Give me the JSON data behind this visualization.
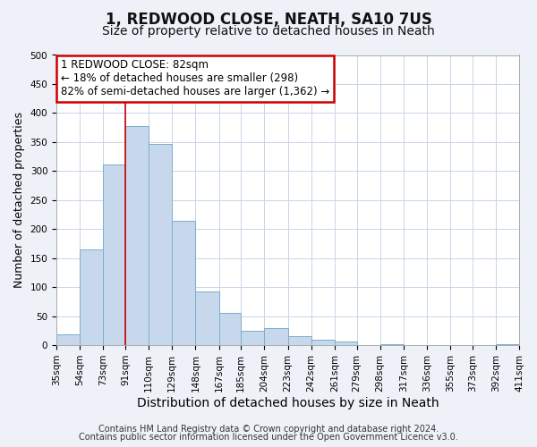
{
  "title": "1, REDWOOD CLOSE, NEATH, SA10 7US",
  "subtitle": "Size of property relative to detached houses in Neath",
  "xlabel": "Distribution of detached houses by size in Neath",
  "ylabel": "Number of detached properties",
  "bar_left_edges": [
    35,
    54,
    73,
    91,
    110,
    129,
    148,
    167,
    185,
    204,
    223,
    242,
    261,
    279,
    298,
    317,
    336,
    355,
    373,
    392
  ],
  "bar_heights": [
    18,
    165,
    312,
    377,
    346,
    215,
    93,
    56,
    25,
    30,
    15,
    10,
    6,
    0,
    2,
    0,
    0,
    0,
    0,
    1
  ],
  "bar_widths": [
    19,
    19,
    18,
    19,
    19,
    19,
    19,
    18,
    19,
    19,
    19,
    19,
    18,
    19,
    19,
    19,
    19,
    18,
    19,
    19
  ],
  "bar_color": "#c8d8ec",
  "bar_edge_color": "#7aaecf",
  "xlim": [
    35,
    411
  ],
  "ylim": [
    0,
    500
  ],
  "yticks": [
    0,
    50,
    100,
    150,
    200,
    250,
    300,
    350,
    400,
    450,
    500
  ],
  "xtick_labels": [
    "35sqm",
    "54sqm",
    "73sqm",
    "91sqm",
    "110sqm",
    "129sqm",
    "148sqm",
    "167sqm",
    "185sqm",
    "204sqm",
    "223sqm",
    "242sqm",
    "261sqm",
    "279sqm",
    "298sqm",
    "317sqm",
    "336sqm",
    "355sqm",
    "373sqm",
    "392sqm",
    "411sqm"
  ],
  "xtick_positions": [
    35,
    54,
    73,
    91,
    110,
    129,
    148,
    167,
    185,
    204,
    223,
    242,
    261,
    279,
    298,
    317,
    336,
    355,
    373,
    392,
    411
  ],
  "marker_x": 91,
  "marker_color": "#cc0000",
  "annotation_line1": "1 REDWOOD CLOSE: 82sqm",
  "annotation_line2": "← 18% of detached houses are smaller (298)",
  "annotation_line3": "82% of semi-detached houses are larger (1,362) →",
  "annotation_fontsize": 8.5,
  "annotation_box_color": "#ffffff",
  "annotation_box_edge": "#cc0000",
  "footer_line1": "Contains HM Land Registry data © Crown copyright and database right 2024.",
  "footer_line2": "Contains public sector information licensed under the Open Government Licence v3.0.",
  "bg_color": "#eef2f8",
  "plot_bg_color": "#ffffff",
  "grid_color": "#c8d4e8",
  "title_fontsize": 12,
  "subtitle_fontsize": 10,
  "xlabel_fontsize": 10,
  "ylabel_fontsize": 9,
  "tick_fontsize": 7.5,
  "footer_fontsize": 7
}
